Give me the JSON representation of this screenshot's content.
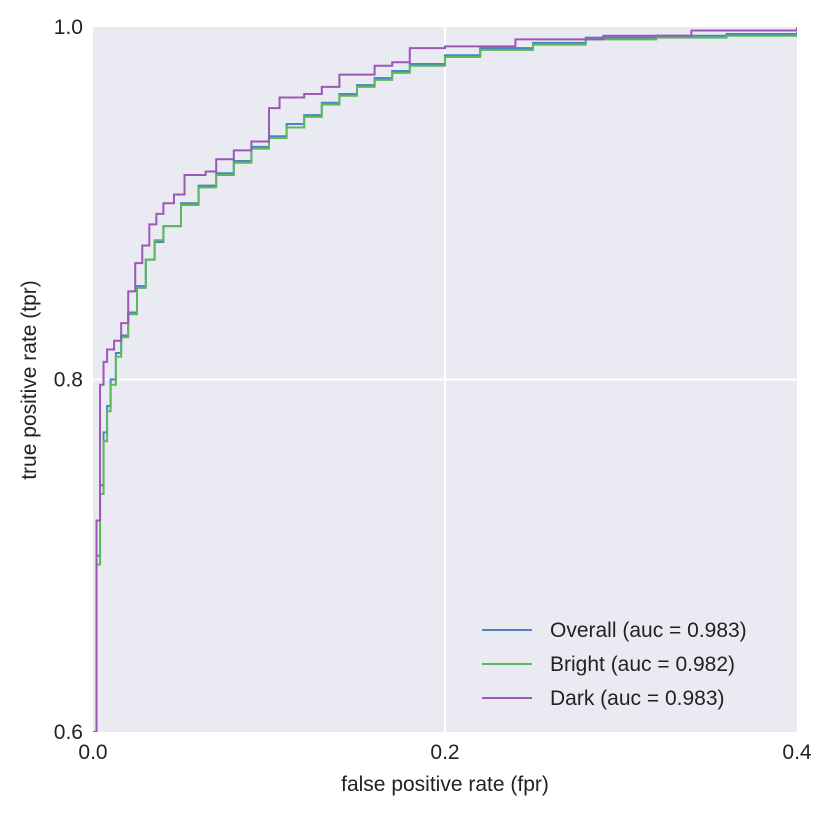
{
  "chart_data": {
    "type": "line",
    "xlabel": "false positive rate (fpr)",
    "ylabel": "true positive rate (tpr)",
    "xlim": [
      0.0,
      0.4
    ],
    "ylim": [
      0.6,
      1.0
    ],
    "xticks": [
      0.0,
      0.2,
      0.4
    ],
    "yticks": [
      0.6,
      0.8,
      1.0
    ],
    "xtick_labels": [
      "0.0",
      "0.2",
      "0.4"
    ],
    "ytick_labels": [
      "0.6",
      "0.8",
      "1.0"
    ],
    "grid": true,
    "background": "#eaeaf2",
    "legend_position": "lower-right",
    "series": [
      {
        "name": "Overall (auc = 0.983)",
        "color": "#4c84c4",
        "x": [
          0.0,
          0.002,
          0.004,
          0.006,
          0.008,
          0.01,
          0.013,
          0.016,
          0.02,
          0.025,
          0.03,
          0.035,
          0.04,
          0.05,
          0.06,
          0.07,
          0.08,
          0.09,
          0.1,
          0.11,
          0.12,
          0.13,
          0.14,
          0.15,
          0.16,
          0.17,
          0.18,
          0.2,
          0.22,
          0.25,
          0.28,
          0.32,
          0.36,
          0.4
        ],
        "y": [
          0.6,
          0.7,
          0.74,
          0.77,
          0.785,
          0.8,
          0.815,
          0.825,
          0.838,
          0.853,
          0.868,
          0.878,
          0.887,
          0.9,
          0.91,
          0.917,
          0.924,
          0.932,
          0.938,
          0.945,
          0.95,
          0.957,
          0.962,
          0.967,
          0.971,
          0.975,
          0.979,
          0.984,
          0.988,
          0.991,
          0.994,
          0.995,
          0.996,
          0.997
        ]
      },
      {
        "name": "Bright (auc = 0.982)",
        "color": "#5bb85b",
        "x": [
          0.0,
          0.002,
          0.004,
          0.006,
          0.008,
          0.01,
          0.013,
          0.016,
          0.02,
          0.025,
          0.03,
          0.035,
          0.04,
          0.05,
          0.06,
          0.07,
          0.08,
          0.09,
          0.1,
          0.11,
          0.12,
          0.13,
          0.14,
          0.15,
          0.16,
          0.17,
          0.18,
          0.2,
          0.22,
          0.25,
          0.28,
          0.32,
          0.36,
          0.4
        ],
        "y": [
          0.6,
          0.695,
          0.735,
          0.765,
          0.782,
          0.797,
          0.813,
          0.824,
          0.837,
          0.852,
          0.868,
          0.879,
          0.887,
          0.899,
          0.909,
          0.916,
          0.923,
          0.931,
          0.937,
          0.943,
          0.949,
          0.956,
          0.961,
          0.966,
          0.97,
          0.974,
          0.978,
          0.983,
          0.987,
          0.99,
          0.993,
          0.994,
          0.995,
          0.996
        ]
      },
      {
        "name": "Dark (auc = 0.983)",
        "color": "#9b59b6",
        "x": [
          0.0,
          0.002,
          0.004,
          0.006,
          0.008,
          0.012,
          0.016,
          0.02,
          0.024,
          0.028,
          0.032,
          0.036,
          0.04,
          0.046,
          0.052,
          0.058,
          0.064,
          0.07,
          0.08,
          0.09,
          0.1,
          0.106,
          0.112,
          0.12,
          0.13,
          0.14,
          0.15,
          0.16,
          0.17,
          0.18,
          0.2,
          0.24,
          0.29,
          0.34,
          0.4
        ],
        "y": [
          0.6,
          0.72,
          0.797,
          0.81,
          0.817,
          0.822,
          0.832,
          0.85,
          0.866,
          0.876,
          0.888,
          0.894,
          0.9,
          0.905,
          0.916,
          0.916,
          0.918,
          0.925,
          0.93,
          0.935,
          0.954,
          0.96,
          0.96,
          0.962,
          0.966,
          0.973,
          0.973,
          0.978,
          0.98,
          0.988,
          0.989,
          0.993,
          0.995,
          0.998,
          1.0
        ]
      }
    ]
  }
}
